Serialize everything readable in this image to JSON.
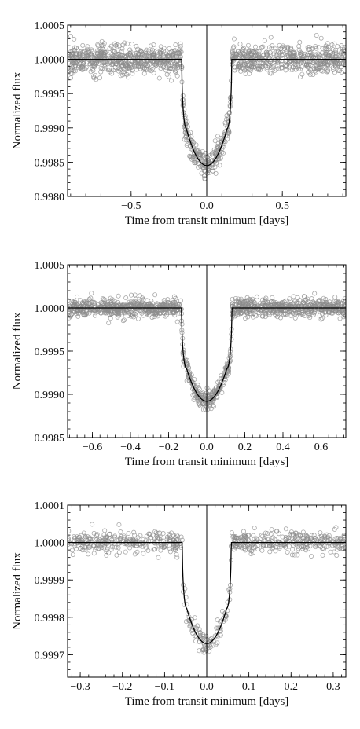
{
  "chart_data": [
    {
      "type": "scatter",
      "xlabel": "Time from transit minimum [days]",
      "ylabel": "Normalized flux",
      "xlim": [
        -0.92,
        0.92
      ],
      "ylim": [
        0.998,
        1.0005
      ],
      "x_ticks": [
        -0.5,
        0.0,
        0.5
      ],
      "x_tick_labels": [
        "−0.5",
        "0.0",
        "0.5"
      ],
      "y_ticks": [
        0.998,
        0.9985,
        0.999,
        0.9995,
        1.0,
        1.0005
      ],
      "y_tick_labels": [
        "0.9980",
        "0.9985",
        "0.9990",
        "0.9995",
        "1.0000",
        "1.0005"
      ],
      "model": {
        "baseline": 1.0,
        "min_flux": 0.99845,
        "half_duration": 0.165,
        "ingress_fraction": 0.82
      },
      "scatter": {
        "noise": 0.0001,
        "n_points": 1400
      },
      "vertical_line_x": 0.0,
      "grid": false
    },
    {
      "type": "scatter",
      "xlabel": "Time from transit minimum [days]",
      "ylabel": "Normalized flux",
      "xlim": [
        -0.73,
        0.73
      ],
      "ylim": [
        0.9985,
        1.0005
      ],
      "x_ticks": [
        -0.6,
        -0.4,
        -0.2,
        0.0,
        0.2,
        0.4,
        0.6
      ],
      "x_tick_labels": [
        "−0.6",
        "−0.4",
        "−0.2",
        "0.0",
        "0.2",
        "0.4",
        "0.6"
      ],
      "y_ticks": [
        0.9985,
        0.999,
        0.9995,
        1.0,
        1.0005
      ],
      "y_tick_labels": [
        "0.9985",
        "0.9990",
        "0.9995",
        "1.0000",
        "1.0005"
      ],
      "model": {
        "baseline": 1.0,
        "min_flux": 0.99892,
        "half_duration": 0.132,
        "ingress_fraction": 0.8
      },
      "scatter": {
        "noise": 5e-05,
        "n_points": 1400
      },
      "vertical_line_x": 0.0,
      "grid": false
    },
    {
      "type": "scatter",
      "xlabel": "Time from transit minimum [days]",
      "ylabel": "Normalized flux",
      "xlim": [
        -0.33,
        0.33
      ],
      "ylim": [
        0.99964,
        1.0001
      ],
      "x_ticks": [
        -0.3,
        -0.2,
        -0.1,
        0.0,
        0.1,
        0.2,
        0.3
      ],
      "x_tick_labels": [
        "−0.3",
        "−0.2",
        "−0.1",
        "0.0",
        "0.1",
        "0.2",
        "0.3"
      ],
      "y_ticks": [
        0.9997,
        0.9998,
        0.9999,
        1.0,
        1.0001
      ],
      "y_tick_labels": [
        "0.9997",
        "0.9998",
        "0.9999",
        "1.0000",
        "1.0001"
      ],
      "model": {
        "baseline": 1.0,
        "min_flux": 0.99973,
        "half_duration": 0.058,
        "ingress_fraction": 0.82
      },
      "scatter": {
        "noise": 1.4e-05,
        "n_points": 700
      },
      "vertical_line_x": 0.0,
      "grid": false
    }
  ]
}
